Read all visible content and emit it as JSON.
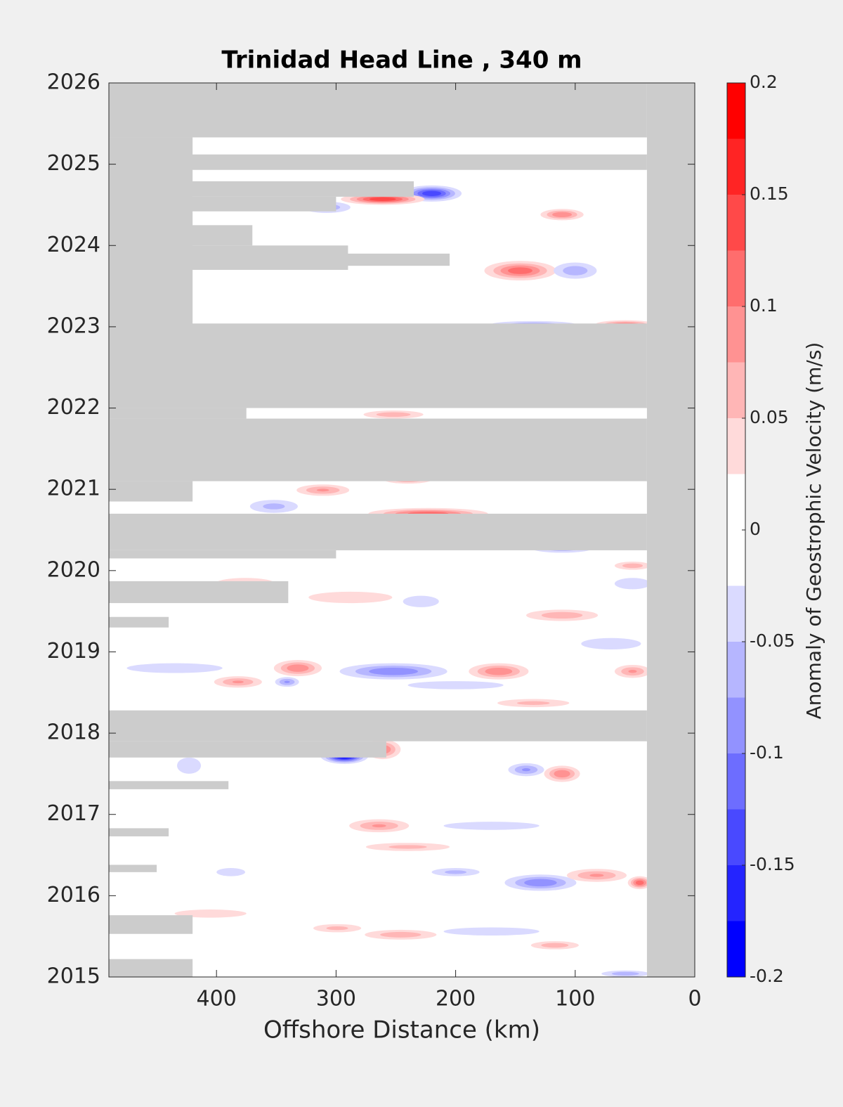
{
  "chart_data": {
    "type": "contour",
    "title": "Trinidad Head Line , 340 m",
    "x_label": "Offshore Distance (km)",
    "colorbar_label": "Anomaly of Geostrophic Velocity (m/s)",
    "xlim": [
      490,
      0
    ],
    "ylim": [
      2015,
      2026
    ],
    "xticks": [
      400,
      300,
      200,
      100,
      0
    ],
    "yticks": [
      2015,
      2016,
      2017,
      2018,
      2019,
      2020,
      2021,
      2022,
      2023,
      2024,
      2025,
      2026
    ],
    "clim": [
      -0.2,
      0.2
    ],
    "cticks": [
      -0.2,
      -0.15,
      -0.1,
      -0.05,
      0,
      0.05,
      0.1,
      0.15,
      0.2
    ],
    "colors": [
      "#0000ff",
      "#2424ff",
      "#4949ff",
      "#6d6dff",
      "#9292ff",
      "#b6b6ff",
      "#dadaff",
      "#ffffff",
      "#ffffff",
      "#ffdada",
      "#ffb6b6",
      "#ff9292",
      "#ff6d6d",
      "#ff4949",
      "#ff2424",
      "#ff0000"
    ],
    "missing_color": "#cccccc",
    "missing": [
      {
        "x": [
          40,
          0
        ],
        "y": [
          2015,
          2026
        ]
      },
      {
        "x": [
          490,
          40
        ],
        "y": [
          2025.33,
          2026
        ]
      },
      {
        "x": [
          490,
          420
        ],
        "y": [
          2023.0,
          2025.33
        ]
      },
      {
        "x": [
          490,
          40
        ],
        "y": [
          2024.93,
          2025.12
        ]
      },
      {
        "x": [
          490,
          235
        ],
        "y": [
          2024.6,
          2024.79
        ]
      },
      {
        "x": [
          490,
          300
        ],
        "y": [
          2024.42,
          2024.6
        ]
      },
      {
        "x": [
          490,
          370
        ],
        "y": [
          2024.0,
          2024.25
        ]
      },
      {
        "x": [
          490,
          290
        ],
        "y": [
          2023.7,
          2024.0
        ]
      },
      {
        "x": [
          490,
          205
        ],
        "y": [
          2023.75,
          2023.9
        ]
      },
      {
        "x": [
          490,
          430
        ],
        "y": [
          2023.35,
          2023.7
        ]
      },
      {
        "x": [
          490,
          40
        ],
        "y": [
          2022.0,
          2023.04
        ]
      },
      {
        "x": [
          490,
          375
        ],
        "y": [
          2021.87,
          2022.0
        ]
      },
      {
        "x": [
          490,
          40
        ],
        "y": [
          2021.1,
          2021.87
        ]
      },
      {
        "x": [
          490,
          420
        ],
        "y": [
          2020.85,
          2021.1
        ]
      },
      {
        "x": [
          490,
          40
        ],
        "y": [
          2020.25,
          2020.7
        ]
      },
      {
        "x": [
          490,
          300
        ],
        "y": [
          2020.15,
          2020.25
        ]
      },
      {
        "x": [
          490,
          340
        ],
        "y": [
          2019.6,
          2019.87
        ]
      },
      {
        "x": [
          490,
          440
        ],
        "y": [
          2019.3,
          2019.43
        ]
      },
      {
        "x": [
          490,
          40
        ],
        "y": [
          2017.9,
          2018.28
        ]
      },
      {
        "x": [
          490,
          258
        ],
        "y": [
          2017.7,
          2017.9
        ]
      },
      {
        "x": [
          490,
          390
        ],
        "y": [
          2017.31,
          2017.41
        ]
      },
      {
        "x": [
          490,
          440
        ],
        "y": [
          2016.73,
          2016.83
        ]
      },
      {
        "x": [
          490,
          450
        ],
        "y": [
          2016.29,
          2016.38
        ]
      },
      {
        "x": [
          490,
          420
        ],
        "y": [
          2015.53,
          2015.76
        ]
      },
      {
        "x": [
          490,
          420
        ],
        "y": [
          2015,
          2015.22
        ]
      }
    ],
    "features": [
      {
        "x": 293,
        "y": 2017.72,
        "w": 20,
        "h": 0.1,
        "value": -0.2
      },
      {
        "x": 261,
        "y": 2017.8,
        "w": 15,
        "h": 0.12,
        "value": 0.1
      },
      {
        "x": 220,
        "y": 2024.64,
        "w": 25,
        "h": 0.1,
        "value": -0.15
      },
      {
        "x": 261,
        "y": 2024.57,
        "w": 35,
        "h": 0.07,
        "value": 0.15
      },
      {
        "x": 308,
        "y": 2024.47,
        "w": 20,
        "h": 0.07,
        "value": -0.07
      },
      {
        "x": 146,
        "y": 2023.69,
        "w": 30,
        "h": 0.12,
        "value": 0.12
      },
      {
        "x": 100,
        "y": 2023.69,
        "w": 18,
        "h": 0.1,
        "value": -0.07
      },
      {
        "x": 111,
        "y": 2024.38,
        "w": 18,
        "h": 0.07,
        "value": 0.1
      },
      {
        "x": 58,
        "y": 2023.03,
        "w": 25,
        "h": 0.05,
        "value": 0.1
      },
      {
        "x": 135,
        "y": 2023.03,
        "w": 35,
        "h": 0.04,
        "value": -0.07
      },
      {
        "x": 223,
        "y": 2020.7,
        "w": 50,
        "h": 0.07,
        "value": 0.12
      },
      {
        "x": 311,
        "y": 2020.99,
        "w": 22,
        "h": 0.07,
        "value": 0.08
      },
      {
        "x": 240,
        "y": 2021.12,
        "w": 20,
        "h": 0.05,
        "value": 0.08
      },
      {
        "x": 352,
        "y": 2020.79,
        "w": 20,
        "h": 0.08,
        "value": -0.06
      },
      {
        "x": 252,
        "y": 2021.92,
        "w": 25,
        "h": 0.05,
        "value": 0.07
      },
      {
        "x": 111,
        "y": 2020.27,
        "w": 25,
        "h": 0.05,
        "value": -0.07
      },
      {
        "x": 252,
        "y": 2018.76,
        "w": 45,
        "h": 0.1,
        "value": -0.1
      },
      {
        "x": 332,
        "y": 2018.8,
        "w": 20,
        "h": 0.1,
        "value": 0.1
      },
      {
        "x": 382,
        "y": 2018.63,
        "w": 20,
        "h": 0.07,
        "value": 0.08
      },
      {
        "x": 341,
        "y": 2018.63,
        "w": 10,
        "h": 0.06,
        "value": -0.08
      },
      {
        "x": 164,
        "y": 2018.76,
        "w": 25,
        "h": 0.1,
        "value": 0.1
      },
      {
        "x": 52,
        "y": 2018.76,
        "w": 15,
        "h": 0.08,
        "value": 0.08
      },
      {
        "x": 200,
        "y": 2018.59,
        "w": 40,
        "h": 0.05,
        "value": -0.05
      },
      {
        "x": 135,
        "y": 2018.37,
        "w": 30,
        "h": 0.05,
        "value": 0.06
      },
      {
        "x": 111,
        "y": 2017.5,
        "w": 15,
        "h": 0.1,
        "value": 0.1
      },
      {
        "x": 141,
        "y": 2017.55,
        "w": 15,
        "h": 0.08,
        "value": -0.08
      },
      {
        "x": 264,
        "y": 2016.86,
        "w": 25,
        "h": 0.08,
        "value": 0.08
      },
      {
        "x": 170,
        "y": 2016.86,
        "w": 40,
        "h": 0.05,
        "value": -0.05
      },
      {
        "x": 129,
        "y": 2016.16,
        "w": 30,
        "h": 0.1,
        "value": -0.1
      },
      {
        "x": 82,
        "y": 2016.25,
        "w": 25,
        "h": 0.08,
        "value": 0.08
      },
      {
        "x": 46,
        "y": 2016.16,
        "w": 10,
        "h": 0.08,
        "value": 0.12
      },
      {
        "x": 200,
        "y": 2016.29,
        "w": 20,
        "h": 0.05,
        "value": -0.06
      },
      {
        "x": 240,
        "y": 2016.6,
        "w": 35,
        "h": 0.05,
        "value": 0.06
      },
      {
        "x": 246,
        "y": 2015.52,
        "w": 30,
        "h": 0.06,
        "value": 0.07
      },
      {
        "x": 299,
        "y": 2015.6,
        "w": 20,
        "h": 0.05,
        "value": 0.06
      },
      {
        "x": 170,
        "y": 2015.56,
        "w": 40,
        "h": 0.05,
        "value": -0.05
      },
      {
        "x": 117,
        "y": 2015.39,
        "w": 20,
        "h": 0.05,
        "value": 0.07
      },
      {
        "x": 58,
        "y": 2015.04,
        "w": 20,
        "h": 0.04,
        "value": -0.07
      },
      {
        "x": 423,
        "y": 2017.6,
        "w": 10,
        "h": 0.1,
        "value": -0.05
      },
      {
        "x": 405,
        "y": 2015.78,
        "w": 30,
        "h": 0.05,
        "value": 0.04
      },
      {
        "x": 388,
        "y": 2016.29,
        "w": 12,
        "h": 0.05,
        "value": -0.04
      },
      {
        "x": 288,
        "y": 2019.67,
        "w": 35,
        "h": 0.07,
        "value": 0.05
      },
      {
        "x": 229,
        "y": 2019.62,
        "w": 15,
        "h": 0.07,
        "value": -0.05
      },
      {
        "x": 111,
        "y": 2019.45,
        "w": 30,
        "h": 0.07,
        "value": 0.07
      },
      {
        "x": 70,
        "y": 2019.1,
        "w": 25,
        "h": 0.07,
        "value": -0.05
      },
      {
        "x": 376,
        "y": 2019.84,
        "w": 25,
        "h": 0.07,
        "value": 0.04
      },
      {
        "x": 435,
        "y": 2018.8,
        "w": 40,
        "h": 0.06,
        "value": -0.04
      },
      {
        "x": 52,
        "y": 2019.84,
        "w": 15,
        "h": 0.07,
        "value": -0.05
      },
      {
        "x": 52,
        "y": 2020.06,
        "w": 15,
        "h": 0.05,
        "value": 0.07
      }
    ]
  }
}
